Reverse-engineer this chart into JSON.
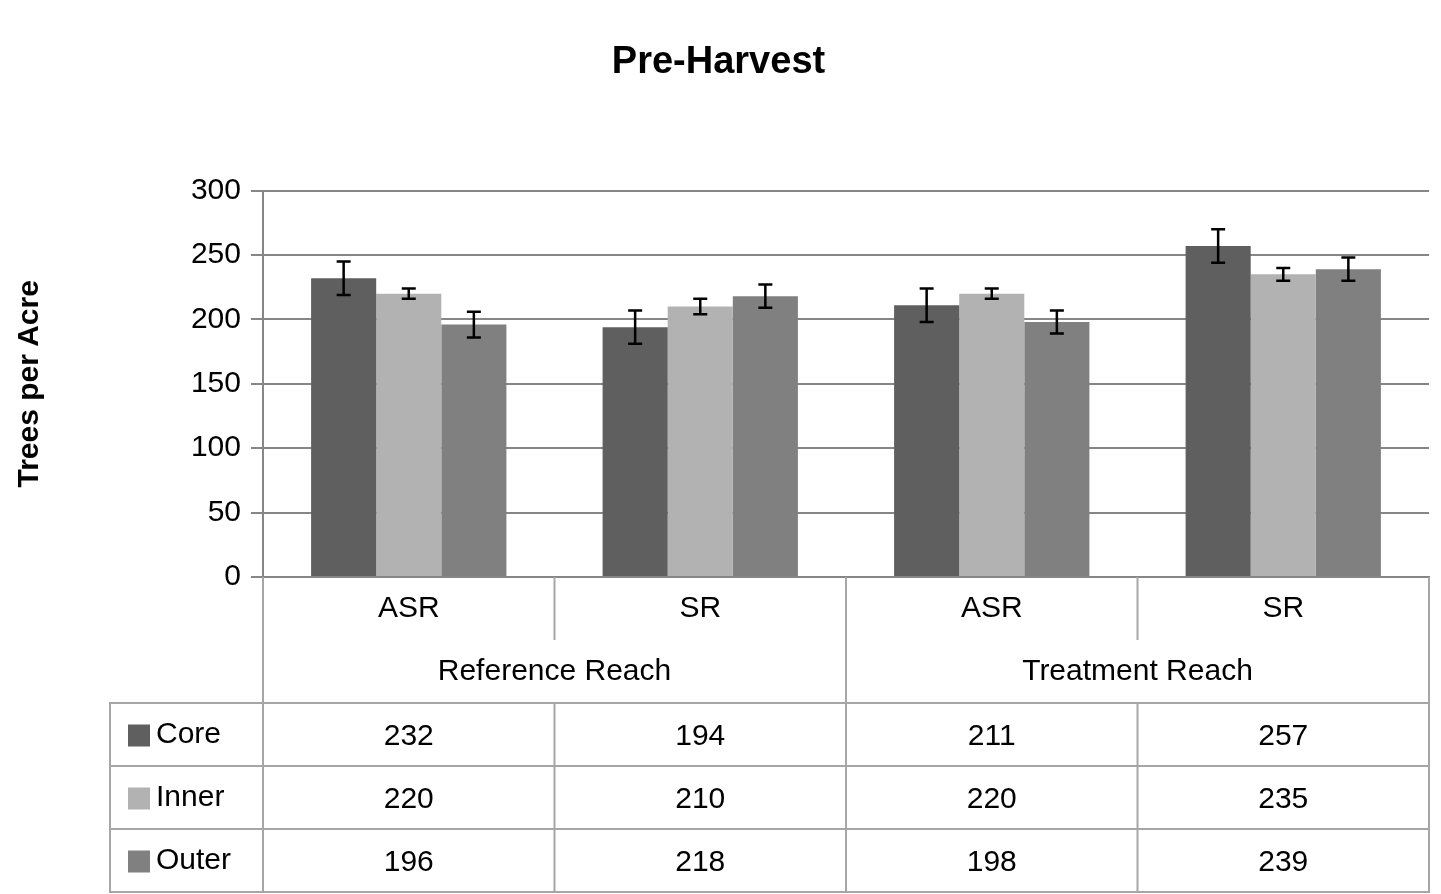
{
  "chart_data": {
    "type": "bar",
    "title": "Pre-Harvest",
    "ylabel": "Trees per Acre",
    "categories": [
      "ASR",
      "SR",
      "ASR",
      "SR"
    ],
    "annotations": [
      "Reference Reach",
      "Treatment Reach"
    ],
    "series": [
      {
        "name": "Core",
        "color": "#5f5f5f",
        "values": [
          232,
          194,
          211,
          257
        ],
        "errors": [
          13,
          13,
          13,
          13
        ]
      },
      {
        "name": "Inner",
        "color": "#b2b2b2",
        "values": [
          220,
          210,
          220,
          235
        ],
        "errors": [
          4,
          6,
          4,
          5
        ]
      },
      {
        "name": "Outer",
        "color": "#808080",
        "values": [
          196,
          218,
          198,
          239
        ],
        "errors": [
          10,
          9,
          9,
          9
        ]
      }
    ],
    "ylim": [
      0,
      300
    ],
    "yticks": [
      0,
      50,
      100,
      150,
      200,
      250,
      300
    ],
    "grid": "y",
    "legend": "bottom",
    "data_labels": true
  }
}
